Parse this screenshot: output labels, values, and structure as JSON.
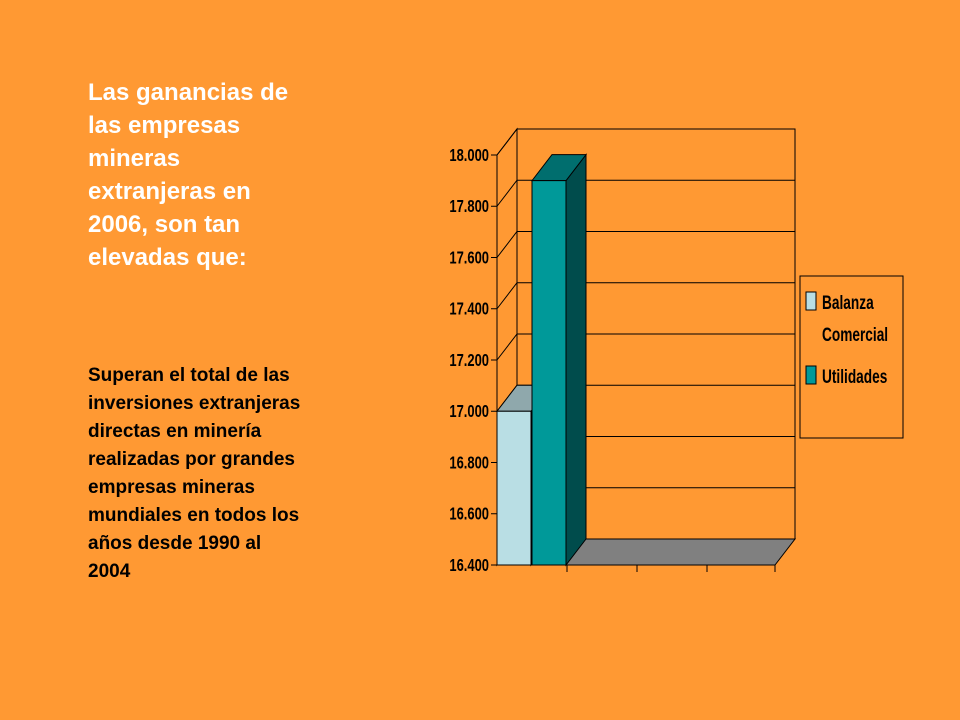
{
  "slide": {
    "title": "Las ganancias de\nlas empresas\nmineras\nextranjeras en\n2006, son tan\nelevadas que:",
    "body": "Superan el total de las\ninversiones extranjeras\ndirectas en minería\nrealizadas por grandes\nempresas mineras\nmundiales en todos los\naños desde 1990 al\n2004"
  },
  "chart_data": {
    "type": "bar",
    "style": "3d-clustered-column",
    "categories": [
      ""
    ],
    "series": [
      {
        "name": "Balanza Comercial",
        "values": [
          17000
        ],
        "color": "#B9DEE4"
      },
      {
        "name": "Utilidades",
        "values": [
          17900
        ],
        "color": "#009999"
      }
    ],
    "ylim": [
      16400,
      18000
    ],
    "yticks": [
      "16.400",
      "16.600",
      "16.800",
      "17.000",
      "17.200",
      "17.400",
      "17.600",
      "17.800",
      "18.000"
    ],
    "grid": true,
    "legend_position": "right",
    "legend_lines": [
      [
        "Balanza",
        "Comercial"
      ],
      [
        "Utilidades"
      ]
    ],
    "colors": {
      "plot_background": "#FF9933",
      "floor": "#808080",
      "side_wall": "#FF9933",
      "balanza_top": "#8FA8AC",
      "utilidades_top": "#006E6E",
      "utilidades_side": "#004C4C"
    }
  }
}
